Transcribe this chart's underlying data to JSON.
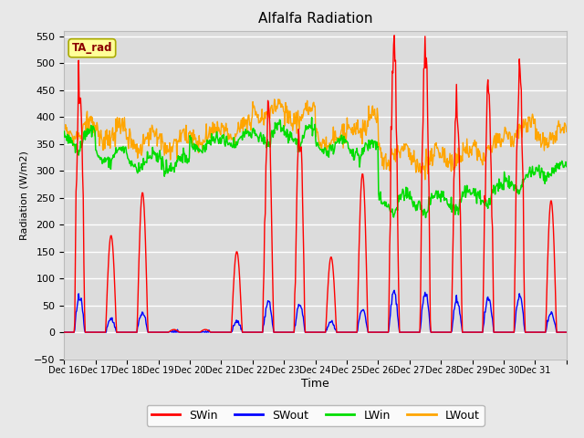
{
  "title": "Alfalfa Radiation",
  "xlabel": "Time",
  "ylabel": "Radiation (W/m2)",
  "ylim": [
    -50,
    560
  ],
  "yticks": [
    -50,
    0,
    50,
    100,
    150,
    200,
    250,
    300,
    350,
    400,
    450,
    500,
    550
  ],
  "background_color": "#e8e8e8",
  "plot_bg_color": "#dcdcdc",
  "grid_color": "#ffffff",
  "colors": {
    "SWin": "#ff0000",
    "SWout": "#0000ff",
    "LWin": "#00dd00",
    "LWout": "#ffa500"
  },
  "legend_label": "TA_rad",
  "legend_bg": "#ffff99",
  "legend_border": "#cccc00",
  "n_days": 16,
  "start_day": 16,
  "tick_labels": [
    "Dec 16",
    "Dec 17",
    "Dec 18",
    "Dec 19",
    "Dec 20",
    "Dec 21",
    "Dec 22",
    "Dec 23",
    "Dec 24",
    "Dec 25",
    "Dec 26",
    "Dec 27",
    "Dec 28",
    "Dec 29",
    "Dec 30",
    "Dec 31",
    ""
  ]
}
